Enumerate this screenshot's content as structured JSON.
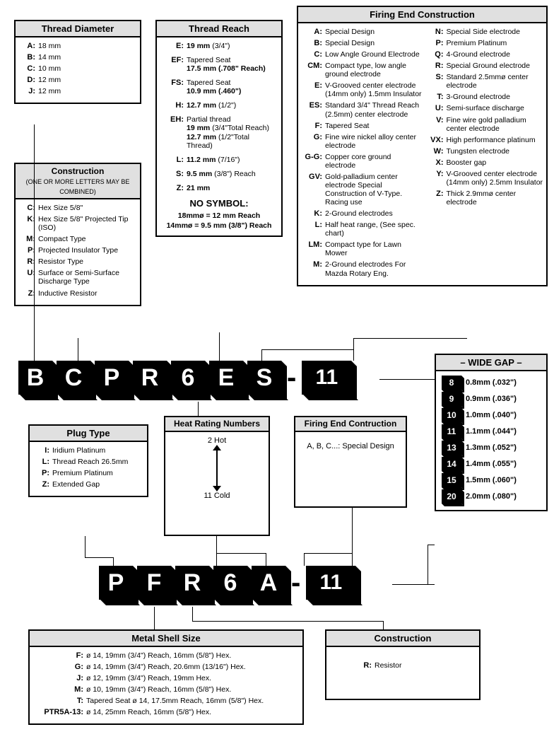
{
  "threadDiameter": {
    "title": "Thread Diameter",
    "items": [
      {
        "c": "A:",
        "d": "18 mm"
      },
      {
        "c": "B:",
        "d": "14 mm"
      },
      {
        "c": "C:",
        "d": "10 mm"
      },
      {
        "c": "D:",
        "d": "12 mm"
      },
      {
        "c": "J:",
        "d": "12 mm"
      }
    ]
  },
  "construction1": {
    "title": "Construction",
    "sub": "(ONE OR MORE LETTERS MAY BE COMBINED)",
    "items": [
      {
        "c": "C:",
        "d": "Hex Size 5/8\""
      },
      {
        "c": "K:",
        "d": "Hex Size 5/8\" Projected Tip (ISO)"
      },
      {
        "c": "M:",
        "d": "Compact Type"
      },
      {
        "c": "P:",
        "d": "Projected Insulator Type"
      },
      {
        "c": "R:",
        "d": "Resistor Type"
      },
      {
        "c": "U:",
        "d": "Surface or Semi-Surface Discharge Type"
      },
      {
        "c": "Z:",
        "d": "Inductive Resistor"
      }
    ]
  },
  "threadReach": {
    "title": "Thread Reach",
    "items": [
      {
        "c": "E:",
        "d": "<span class='b'>19 mm</span> (3/4\")"
      },
      {
        "c": "EF:",
        "d": "Tapered Seat<br><span class='b'>17.5 mm (.708\" Reach)</span>"
      },
      {
        "c": "FS:",
        "d": "Tapered Seat<br><span class='b'>10.9 mm (.460\")</span>"
      },
      {
        "c": "H:",
        "d": "<span class='b'>12.7 mm</span> (1/2\")"
      },
      {
        "c": "EH:",
        "d": "Partial thread<br><span class='b'>19 mm</span> (3/4\"Total Reach)<br><span class='b'>12.7 mm</span> (1/2\"Total Thread)"
      },
      {
        "c": "L:",
        "d": "<span class='b'>11.2 mm</span> (7/16\")"
      },
      {
        "c": "S:",
        "d": "<span class='b'>9.5 mm</span> (3/8\") Reach"
      },
      {
        "c": "Z:",
        "d": "<span class='b'>21 mm</span>"
      }
    ],
    "nosymTitle": "NO SYMBOL:",
    "nosym1": "18mmø = 12 mm Reach",
    "nosym2": "14mmø = 9.5 mm (3/8\") Reach"
  },
  "firingEnd": {
    "title": "Firing End Construction",
    "left": [
      {
        "c": "A:",
        "d": "Special Design"
      },
      {
        "c": "B:",
        "d": "Special Design"
      },
      {
        "c": "C:",
        "d": "Low Angle Ground Electrode"
      },
      {
        "c": "CM:",
        "d": "Compact type, low angle ground electrode"
      },
      {
        "c": "E:",
        "d": "V-Grooved center electrode (14mm only) 1.5mm Insulator"
      },
      {
        "c": "ES:",
        "d": "Standard 3/4\" Thread Reach (2.5mm) center electrode"
      },
      {
        "c": "F:",
        "d": "Tapered Seat"
      },
      {
        "c": "G:",
        "d": "Fine wire nickel alloy center electrode"
      },
      {
        "c": "G-G:",
        "d": "Copper core ground electrode"
      },
      {
        "c": "GV:",
        "d": "Gold-palladium center electrode Special Construction of V-Type. Racing use"
      },
      {
        "c": "K:",
        "d": "2-Ground electrodes"
      },
      {
        "c": "L:",
        "d": "Half heat range, (See spec. chart)"
      },
      {
        "c": "LM:",
        "d": "Compact type for Lawn Mower"
      },
      {
        "c": "M:",
        "d": "2-Ground electrodes For Mazda Rotary Eng."
      }
    ],
    "right": [
      {
        "c": "N:",
        "d": "Special Side electrode"
      },
      {
        "c": "P:",
        "d": "Premium Platinum"
      },
      {
        "c": "Q:",
        "d": "4-Ground electrode"
      },
      {
        "c": "R:",
        "d": "Special Ground electrode"
      },
      {
        "c": "S:",
        "d": "Standard 2.5mmø center electrode"
      },
      {
        "c": "T:",
        "d": "3-Ground electrode"
      },
      {
        "c": "U:",
        "d": "Semi-surface discharge"
      },
      {
        "c": "V:",
        "d": "Fine wire gold palladium center electrode"
      },
      {
        "c": "VX:",
        "d": "High performance platinum"
      },
      {
        "c": "W:",
        "d": "Tungsten electrode"
      },
      {
        "c": "X:",
        "d": "Booster gap"
      },
      {
        "c": "Y:",
        "d": "V-Grooved center electrode (14mm only) 2.5mm Insulator"
      },
      {
        "c": "Z:",
        "d": "Thick 2.9mmø center electrode"
      }
    ]
  },
  "wideGap": {
    "title": "– WIDE GAP –",
    "items": [
      {
        "c": "8",
        "d": "0.8mm (.032\")"
      },
      {
        "c": "9",
        "d": "0.9mm (.036\")"
      },
      {
        "c": "10",
        "d": "1.0mm (.040\")"
      },
      {
        "c": "11",
        "d": "1.1mm (.044\")"
      },
      {
        "c": "13",
        "d": "1.3mm (.052\")"
      },
      {
        "c": "14",
        "d": "1.4mm (.055\")"
      },
      {
        "c": "15",
        "d": "1.5mm (.060\")"
      },
      {
        "c": "20",
        "d": "2.0mm (.080\")"
      }
    ]
  },
  "strip1": [
    "B",
    "C",
    "P",
    "R",
    "6",
    "E",
    "S",
    "-",
    "11"
  ],
  "plugType": {
    "title": "Plug Type",
    "items": [
      {
        "c": "I:",
        "d": "Iridium Platinum"
      },
      {
        "c": "L:",
        "d": "Thread Reach 26.5mm"
      },
      {
        "c": "P:",
        "d": "Premium Platinum"
      },
      {
        "c": "Z:",
        "d": "Extended Gap"
      }
    ]
  },
  "heatRating": {
    "title": "Heat Rating Numbers",
    "hot": "2 Hot",
    "cold": "11 Cold"
  },
  "firingEnd2": {
    "title": "Firing End Contruction",
    "text": "A, B, C...: Special Design"
  },
  "strip2": [
    "P",
    "F",
    "R",
    "6",
    "A",
    "-",
    "11"
  ],
  "metalShell": {
    "title": "Metal Shell Size",
    "items": [
      {
        "c": "F:",
        "d": "ø 14, 19mm (3/4\") Reach, 16mm (5/8\") Hex."
      },
      {
        "c": "G:",
        "d": "ø 14, 19mm (3/4\") Reach, 20.6mm (13/16\") Hex."
      },
      {
        "c": "J:",
        "d": "ø 12, 19mm (3/4\") Reach, 19mm Hex."
      },
      {
        "c": "M:",
        "d": "ø 10, 19mm (3/4\") Reach, 16mm (5/8\") Hex."
      },
      {
        "c": "T:",
        "d": "Tapered Seat ø 14, 17.5mm Reach, 16mm (5/8\") Hex."
      },
      {
        "c": "PTR5A-13:",
        "d": "ø 14, 25mm Reach, 16mm (5/8\") Hex."
      }
    ]
  },
  "construction2": {
    "title": "Construction",
    "c": "R:",
    "d": "Resistor"
  }
}
